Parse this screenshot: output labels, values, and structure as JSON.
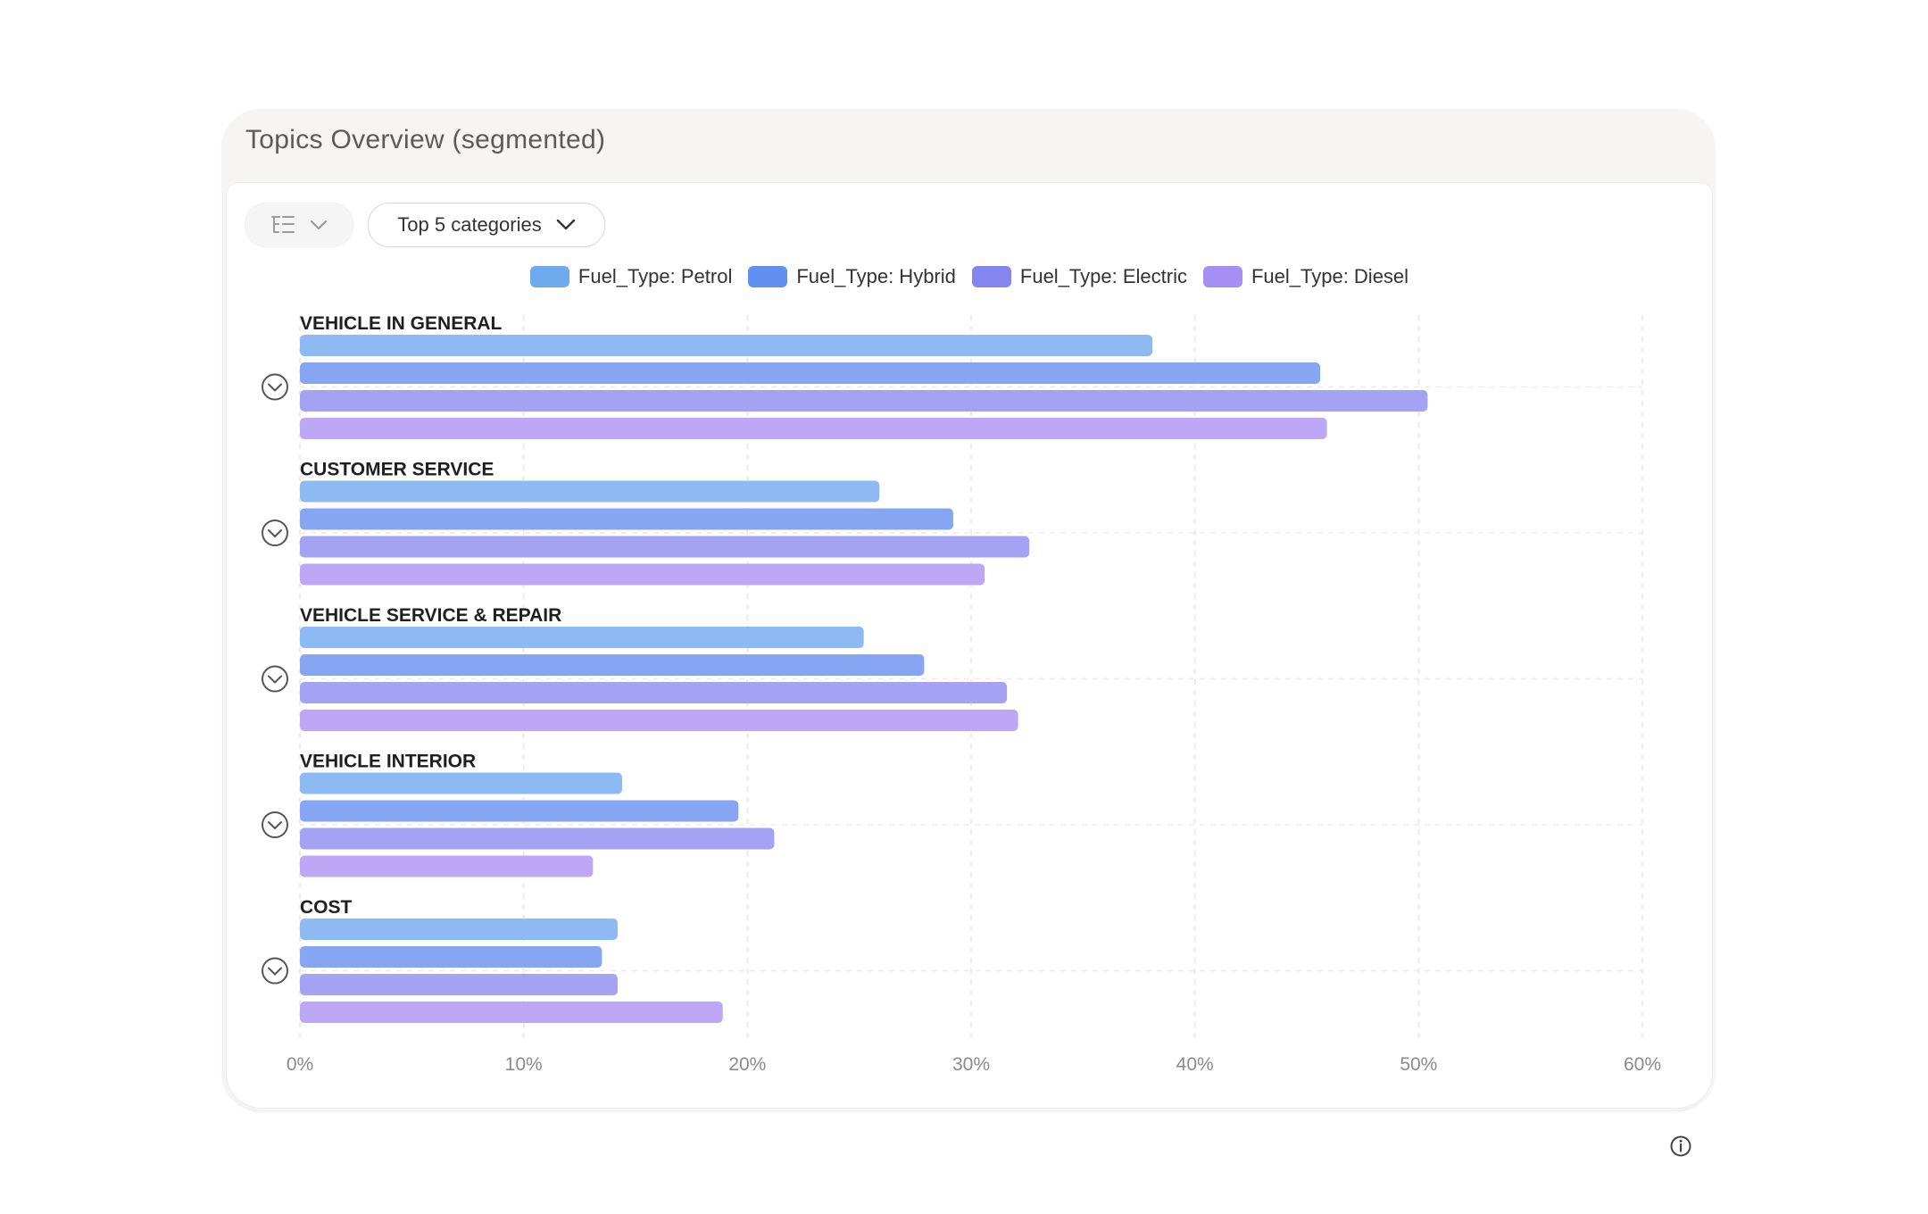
{
  "card": {
    "title": "Topics Overview (segmented)"
  },
  "controls": {
    "view_toggle_icon": "tree-list-icon",
    "dropdown_label": "Top 5 categories"
  },
  "colors": {
    "Fuel_Type: Petrol": "#8dbaf3",
    "Fuel_Type: Hybrid": "#86a6f4",
    "Fuel_Type: Electric": "#a3a2f3",
    "Fuel_Type: Diesel": "#bea8f5"
  },
  "legend_colors": [
    "#6faaee",
    "#6290f0",
    "#8585f0",
    "#a68ff2"
  ],
  "chart_data": {
    "type": "bar",
    "orientation": "horizontal",
    "categories": [
      "VEHICLE IN GENERAL",
      "CUSTOMER SERVICE",
      "VEHICLE SERVICE & REPAIR",
      "VEHICLE INTERIOR",
      "COST"
    ],
    "series": [
      {
        "name": "Fuel_Type: Petrol",
        "values": [
          38.1,
          25.9,
          25.2,
          14.4,
          14.2
        ]
      },
      {
        "name": "Fuel_Type: Hybrid",
        "values": [
          45.6,
          29.2,
          27.9,
          19.6,
          13.5
        ]
      },
      {
        "name": "Fuel_Type: Electric",
        "values": [
          50.4,
          32.6,
          31.6,
          21.2,
          14.2
        ]
      },
      {
        "name": "Fuel_Type: Diesel",
        "values": [
          45.9,
          30.6,
          32.1,
          13.1,
          18.9
        ]
      }
    ],
    "xlim": [
      0,
      60
    ],
    "xticks": [
      "0%",
      "10%",
      "20%",
      "30%",
      "40%",
      "50%",
      "60%"
    ],
    "grid": true,
    "legend": "top-center"
  }
}
